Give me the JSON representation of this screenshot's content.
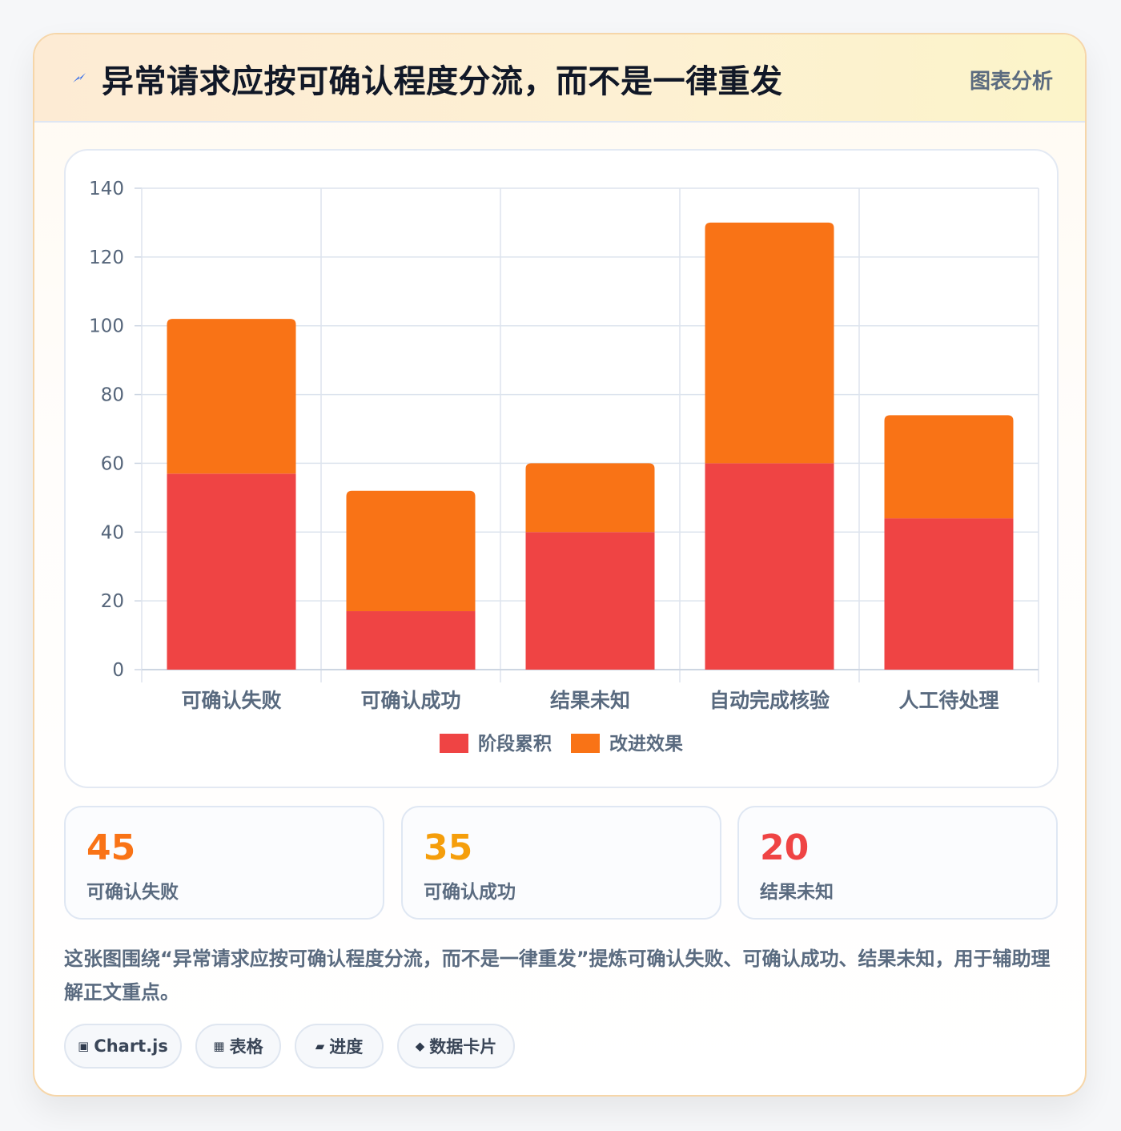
{
  "header": {
    "title": "异常请求应按可确认程度分流，而不是一律重发",
    "tag": "图表分析",
    "icon": "lightning-icon"
  },
  "chart_data": {
    "type": "bar",
    "stacked": true,
    "categories": [
      "可确认失败",
      "可确认成功",
      "结果未知",
      "自动完成核验",
      "人工待处理"
    ],
    "series": [
      {
        "name": "阶段累积",
        "color": "#ef4444",
        "values": [
          57,
          17,
          40,
          60,
          44
        ]
      },
      {
        "name": "改进效果",
        "color": "#f97316",
        "values": [
          45,
          35,
          20,
          70,
          30
        ]
      }
    ],
    "ylim": [
      0,
      140
    ],
    "yticks": [
      0,
      20,
      40,
      60,
      80,
      100,
      120,
      140
    ],
    "grid": true,
    "legend": "bottom"
  },
  "stats": [
    {
      "value": "45",
      "label": "可确认失败",
      "color": "#f97316"
    },
    {
      "value": "35",
      "label": "可确认成功",
      "color": "#f59e0b"
    },
    {
      "value": "20",
      "label": "结果未知",
      "color": "#ef4444"
    }
  ],
  "description": "这张图围绕“异常请求应按可确认程度分流，而不是一律重发”提炼可确认失败、可确认成功、结果未知，用于辅助理解正文重点。",
  "chips": [
    {
      "icon": "▣",
      "icon_name": "chart-icon",
      "label": "Chart.js"
    },
    {
      "icon": "▦",
      "icon_name": "table-icon",
      "label": "表格"
    },
    {
      "icon": "▰",
      "icon_name": "progress-icon",
      "label": "进度"
    },
    {
      "icon": "◆",
      "icon_name": "card-icon",
      "label": "数据卡片"
    }
  ]
}
